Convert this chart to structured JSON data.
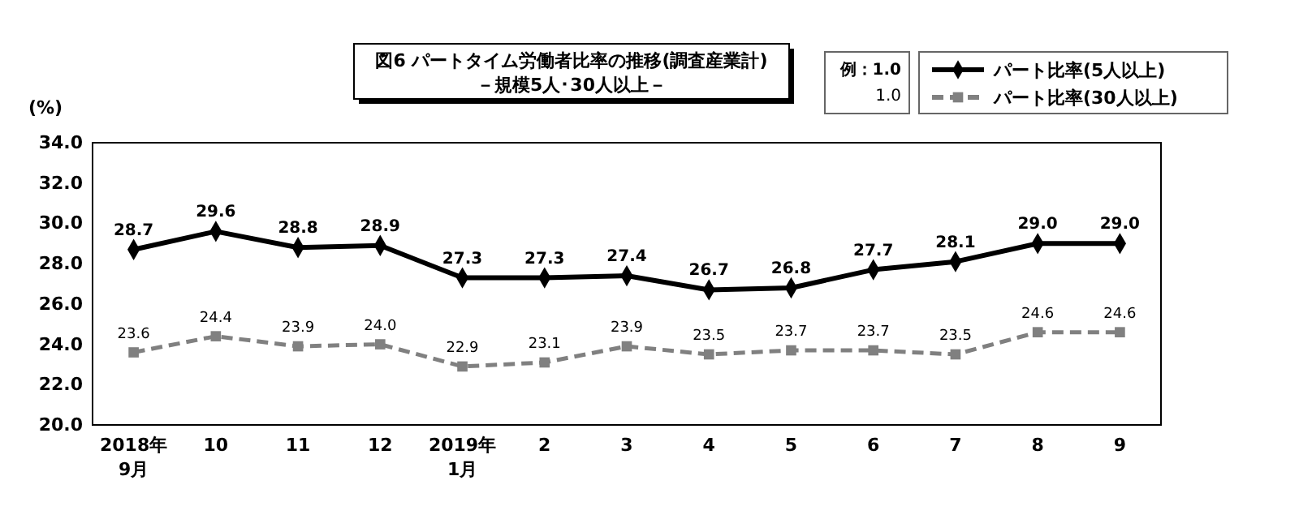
{
  "chart_data": {
    "type": "line",
    "title": "図6  パートタイム労働者比率の推移(調査産業計)",
    "subtitle": "－規模5人･30人以上－",
    "ylabel": "(%)",
    "categories": [
      "2018年\n9月",
      "10",
      "11",
      "12",
      "2019年\n1月",
      "2",
      "3",
      "4",
      "5",
      "6",
      "7",
      "8",
      "9"
    ],
    "series": [
      {
        "name": "パート比率(5人以上)",
        "color": "#000000",
        "marker": "diamond",
        "line_style": "solid",
        "values": [
          28.7,
          29.6,
          28.8,
          28.9,
          27.3,
          27.3,
          27.4,
          26.7,
          26.8,
          27.7,
          28.1,
          29.0,
          29.0
        ],
        "value_labels": [
          "28.7",
          "29.6",
          "28.8",
          "28.9",
          "27.3",
          "27.3",
          "27.4",
          "26.7",
          "26.8",
          "27.7",
          "28.1",
          "29.0",
          "29.0"
        ]
      },
      {
        "name": "パート比率(30人以上)",
        "color": "#808080",
        "marker": "square",
        "line_style": "dashed",
        "values": [
          23.6,
          24.4,
          23.9,
          24.0,
          22.9,
          23.1,
          23.9,
          23.5,
          23.7,
          23.7,
          23.5,
          24.6,
          24.6
        ],
        "value_labels": [
          "23.6",
          "24.4",
          "23.9",
          "24.0",
          "22.9",
          "23.1",
          "23.9",
          "23.5",
          "23.7",
          "23.7",
          "23.5",
          "24.6",
          "24.6"
        ]
      }
    ],
    "ylim": [
      20,
      34
    ],
    "yticks": [
      {
        "value": 20,
        "label": "20.0"
      },
      {
        "value": 22,
        "label": "22.0"
      },
      {
        "value": 24,
        "label": "24.0"
      },
      {
        "value": 26,
        "label": "26.0"
      },
      {
        "value": 28,
        "label": "28.0"
      },
      {
        "value": 30,
        "label": "30.0"
      },
      {
        "value": 32,
        "label": "32.0"
      },
      {
        "value": 34,
        "label": "34.0"
      }
    ],
    "grid": false,
    "legend": "top right",
    "annotations": [
      "例：1.0",
      "1.0"
    ]
  }
}
